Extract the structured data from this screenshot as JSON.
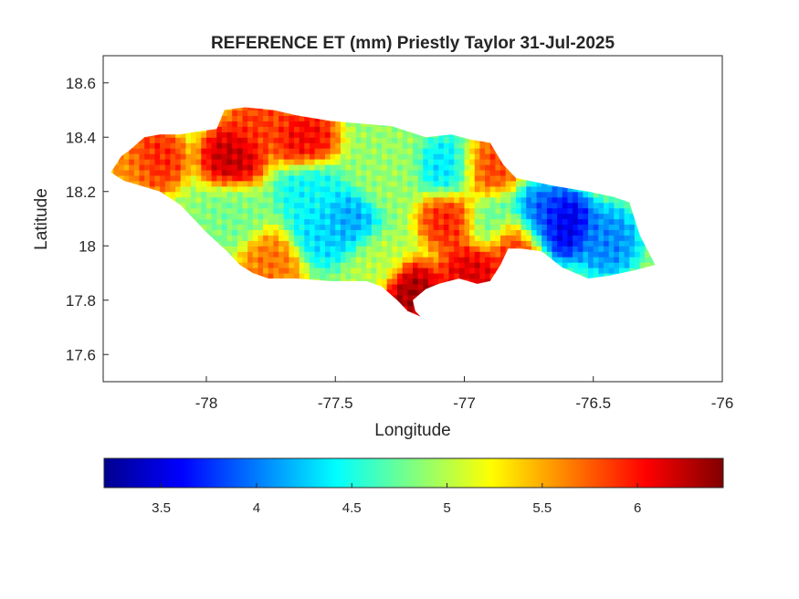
{
  "title": "REFERENCE ET (mm) Priestly Taylor 31-Jul-2025",
  "map": {
    "xlabel": "Longitude",
    "ylabel": "Latitude",
    "xlim": [
      -78.4,
      -76.0
    ],
    "ylim": [
      17.5,
      18.7
    ],
    "xticks": [
      -78,
      -77.5,
      -77,
      -76.5,
      -76
    ],
    "xtick_labels": [
      "-78",
      "-77.5",
      "-77",
      "-76.5",
      "-76"
    ],
    "yticks": [
      17.6,
      17.8,
      18,
      18.2,
      18.4,
      18.6
    ],
    "ytick_labels": [
      "17.6",
      "17.8",
      "18",
      "18.2",
      "18.4",
      "18.6"
    ],
    "region": "Jamaica",
    "boundary": [
      [
        -78.37,
        18.27
      ],
      [
        -78.33,
        18.33
      ],
      [
        -78.3,
        18.35
      ],
      [
        -78.24,
        18.4
      ],
      [
        -78.18,
        18.41
      ],
      [
        -78.1,
        18.41
      ],
      [
        -78.04,
        18.42
      ],
      [
        -77.96,
        18.43
      ],
      [
        -77.93,
        18.5
      ],
      [
        -77.85,
        18.51
      ],
      [
        -77.74,
        18.5
      ],
      [
        -77.65,
        18.48
      ],
      [
        -77.52,
        18.46
      ],
      [
        -77.4,
        18.45
      ],
      [
        -77.28,
        18.44
      ],
      [
        -77.15,
        18.4
      ],
      [
        -77.05,
        18.41
      ],
      [
        -76.97,
        18.39
      ],
      [
        -76.9,
        18.38
      ],
      [
        -76.85,
        18.3
      ],
      [
        -76.8,
        18.25
      ],
      [
        -76.75,
        18.24
      ],
      [
        -76.65,
        18.22
      ],
      [
        -76.52,
        18.2
      ],
      [
        -76.42,
        18.18
      ],
      [
        -76.36,
        18.16
      ],
      [
        -76.32,
        18.04
      ],
      [
        -76.26,
        17.93
      ],
      [
        -76.34,
        17.91
      ],
      [
        -76.44,
        17.89
      ],
      [
        -76.52,
        17.88
      ],
      [
        -76.62,
        17.92
      ],
      [
        -76.7,
        17.98
      ],
      [
        -76.78,
        17.99
      ],
      [
        -76.83,
        17.99
      ],
      [
        -76.86,
        17.93
      ],
      [
        -76.9,
        17.87
      ],
      [
        -76.95,
        17.86
      ],
      [
        -77.02,
        17.88
      ],
      [
        -77.1,
        17.86
      ],
      [
        -77.15,
        17.84
      ],
      [
        -77.2,
        17.8
      ],
      [
        -77.19,
        17.76
      ],
      [
        -77.17,
        17.74
      ],
      [
        -77.22,
        17.76
      ],
      [
        -77.26,
        17.8
      ],
      [
        -77.32,
        17.85
      ],
      [
        -77.38,
        17.87
      ],
      [
        -77.52,
        17.87
      ],
      [
        -77.65,
        17.88
      ],
      [
        -77.76,
        17.88
      ],
      [
        -77.82,
        17.9
      ],
      [
        -77.87,
        17.93
      ],
      [
        -77.92,
        17.98
      ],
      [
        -78.0,
        18.05
      ],
      [
        -78.05,
        18.1
      ],
      [
        -78.1,
        18.15
      ],
      [
        -78.18,
        18.2
      ],
      [
        -78.25,
        18.22
      ],
      [
        -78.32,
        18.24
      ],
      [
        -78.37,
        18.27
      ]
    ]
  },
  "colorbar": {
    "colormap": "jet",
    "clim": [
      3.2,
      6.45
    ],
    "ticks": [
      3.5,
      4,
      4.5,
      5,
      5.5,
      6
    ],
    "tick_labels": [
      "3.5",
      "4",
      "4.5",
      "5",
      "5.5",
      "6"
    ]
  },
  "chart_data": {
    "type": "heatmap",
    "title": "REFERENCE ET (mm) Priestly Taylor 31-Jul-2025",
    "xlabel": "Longitude",
    "ylabel": "Latitude",
    "xlim": [
      -78.4,
      -76.0
    ],
    "ylim": [
      17.5,
      18.7
    ],
    "grid": false,
    "colormap": "jet",
    "value_range": [
      3.2,
      6.45
    ],
    "hotspots": [
      {
        "lon": -77.9,
        "lat": 18.33,
        "value": 6.3
      },
      {
        "lon": -78.2,
        "lat": 18.32,
        "value": 6.0
      },
      {
        "lon": -77.62,
        "lat": 18.4,
        "value": 6.1
      },
      {
        "lon": -77.8,
        "lat": 18.45,
        "value": 5.9
      },
      {
        "lon": -77.05,
        "lat": 18.1,
        "value": 6.0
      },
      {
        "lon": -76.92,
        "lat": 18.28,
        "value": 5.9
      },
      {
        "lon": -77.2,
        "lat": 17.82,
        "value": 6.4
      },
      {
        "lon": -76.97,
        "lat": 17.9,
        "value": 6.2
      },
      {
        "lon": -76.8,
        "lat": 18.0,
        "value": 6.0
      },
      {
        "lon": -77.75,
        "lat": 17.93,
        "value": 5.7
      },
      {
        "lon": -76.62,
        "lat": 18.08,
        "value": 3.4
      },
      {
        "lon": -76.7,
        "lat": 18.1,
        "value": 3.9
      },
      {
        "lon": -76.45,
        "lat": 18.02,
        "value": 4.0
      },
      {
        "lon": -77.45,
        "lat": 18.08,
        "value": 4.1
      },
      {
        "lon": -77.55,
        "lat": 18.05,
        "value": 4.3
      },
      {
        "lon": -77.05,
        "lat": 18.28,
        "value": 4.3
      },
      {
        "lon": -77.6,
        "lat": 18.2,
        "value": 4.4
      },
      {
        "lon": -77.9,
        "lat": 18.12,
        "value": 4.8
      },
      {
        "lon": -77.3,
        "lat": 18.25,
        "value": 4.9
      },
      {
        "lon": -77.35,
        "lat": 17.95,
        "value": 5.0
      },
      {
        "lon": -76.9,
        "lat": 18.1,
        "value": 4.7
      },
      {
        "lon": -78.3,
        "lat": 18.28,
        "value": 5.6
      }
    ],
    "base_value": 4.9
  }
}
